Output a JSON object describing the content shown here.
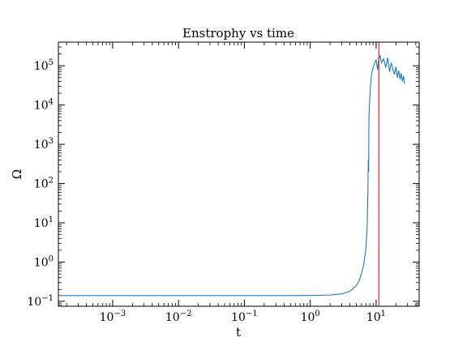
{
  "chart_data": {
    "type": "line",
    "title": "Enstrophy vs time",
    "xlabel": "t",
    "ylabel": "Ω",
    "xscale": "log",
    "yscale": "log",
    "xlim": [
      0.00015,
      45
    ],
    "ylim": [
      0.075,
      400000
    ],
    "grid": false,
    "x_ticks": [
      {
        "value": 0.001,
        "base": "10",
        "exp": "−3"
      },
      {
        "value": 0.01,
        "base": "10",
        "exp": "−2"
      },
      {
        "value": 0.1,
        "base": "10",
        "exp": "−1"
      },
      {
        "value": 1,
        "base": "10",
        "exp": "0"
      },
      {
        "value": 10,
        "base": "10",
        "exp": "1"
      }
    ],
    "y_ticks": [
      {
        "value": 0.1,
        "base": "10",
        "exp": "−1"
      },
      {
        "value": 1,
        "base": "10",
        "exp": "0"
      },
      {
        "value": 10,
        "base": "10",
        "exp": "1"
      },
      {
        "value": 100,
        "base": "10",
        "exp": "2"
      },
      {
        "value": 1000,
        "base": "10",
        "exp": "3"
      },
      {
        "value": 10000,
        "base": "10",
        "exp": "4"
      },
      {
        "value": 100000,
        "base": "10",
        "exp": "5"
      }
    ],
    "series": [
      {
        "color": "#1f77b4",
        "x": [
          0.00015,
          0.001,
          0.01,
          0.1,
          0.5,
          1.0,
          2.0,
          3.0,
          4.0,
          5.0,
          5.5,
          6.0,
          6.5,
          7.0,
          7.3,
          7.5,
          7.6,
          7.7,
          7.75,
          7.8,
          7.9,
          8.0,
          8.2,
          8.5,
          9.0,
          9.5,
          10.0,
          10.5,
          11.0,
          11.5,
          12.0,
          13.0,
          14.0,
          15.0,
          16.0,
          17.0,
          18.0,
          19.0,
          20.0,
          21.0,
          22.0,
          23.0,
          24.0,
          25.0,
          26.0,
          27.0
        ],
        "y": [
          0.14,
          0.14,
          0.14,
          0.14,
          0.14,
          0.141,
          0.145,
          0.155,
          0.18,
          0.25,
          0.33,
          0.5,
          0.9,
          2.2,
          8,
          60,
          400,
          200,
          2500,
          5000,
          9000,
          15000,
          30000,
          60000,
          90000,
          120000,
          140000,
          80000,
          150000,
          180000,
          120000,
          150000,
          90000,
          160000,
          70000,
          120000,
          80000,
          60000,
          95000,
          50000,
          75000,
          45000,
          65000,
          40000,
          55000,
          35000
        ]
      }
    ],
    "markers": [
      {
        "type": "vline",
        "x": 11.0,
        "color": "#b22222"
      }
    ]
  }
}
